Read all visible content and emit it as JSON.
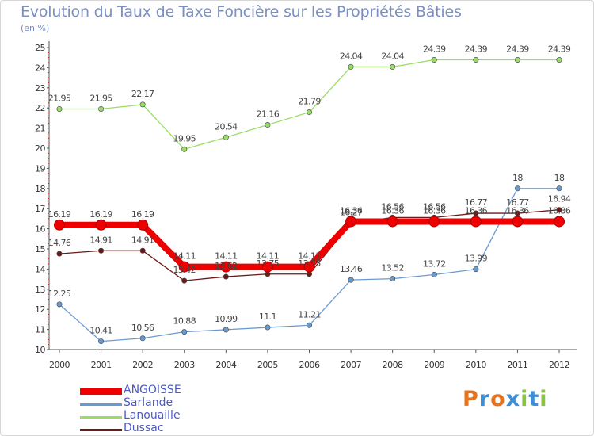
{
  "header": {
    "title": "Evolution du Taux de Taxe Foncière sur les Propriétés Bâties",
    "unit": "(en %)"
  },
  "logo": {
    "letters": [
      "P",
      "r",
      "o",
      "x",
      "i",
      "t",
      "i"
    ],
    "colors": [
      "#e8731f",
      "#3d8fd6",
      "#e8731f",
      "#3d8fd6",
      "#8ac43f",
      "#3d8fd6",
      "#8ac43f"
    ]
  },
  "chart_data": {
    "type": "line",
    "title": "Evolution du Taux de Taxe Foncière sur les Propriétés Bâties",
    "ylabel": "(en %)",
    "xlabel": "",
    "x": [
      "2000",
      "2001",
      "2002",
      "2003",
      "2004",
      "2005",
      "2006",
      "2007",
      "2008",
      "2009",
      "2010",
      "2011",
      "2012"
    ],
    "ylim": [
      10,
      25
    ],
    "yticks": [
      "10",
      "11",
      "12",
      "13",
      "14",
      "15",
      "16",
      "17",
      "18",
      "19",
      "20",
      "21",
      "22",
      "23",
      "24",
      "25"
    ],
    "grid": false,
    "legend_position": "bottom-left",
    "series": [
      {
        "name": "ANGOISSE",
        "color": "#ee0000",
        "values": [
          16.19,
          16.19,
          16.19,
          14.11,
          14.11,
          14.11,
          14.11,
          16.36,
          16.36,
          16.36,
          16.36,
          16.36,
          16.36
        ],
        "labels": [
          "16.19",
          "16.19",
          "16.19",
          "14.11",
          "14.11",
          "14.11",
          "14.11",
          "16.36",
          "16.36",
          "16.36",
          "16.36",
          "16.36",
          "16.36"
        ]
      },
      {
        "name": "Sarlande",
        "color": "#6a9bd0",
        "values": [
          12.25,
          10.41,
          10.56,
          10.88,
          10.99,
          11.1,
          11.21,
          13.46,
          13.52,
          13.72,
          13.99,
          18,
          18
        ],
        "labels": [
          "12.25",
          "10.41",
          "10.56",
          "10.88",
          "10.99",
          "11.1",
          "11.21",
          "13.46",
          "13.52",
          "13.72",
          "13.99",
          "18",
          "18"
        ]
      },
      {
        "name": "Lanouaille",
        "color": "#99dd66",
        "values": [
          21.95,
          21.95,
          22.17,
          19.95,
          20.54,
          21.16,
          21.79,
          24.04,
          24.04,
          24.39,
          24.39,
          24.39,
          24.39
        ],
        "labels": [
          "21.95",
          "21.95",
          "22.17",
          "19.95",
          "20.54",
          "21.16",
          "21.79",
          "24.04",
          "24.04",
          "24.39",
          "24.39",
          "24.39",
          "24.39"
        ]
      },
      {
        "name": "Dussac",
        "color": "#6b1a1a",
        "values": [
          14.76,
          14.91,
          14.91,
          13.42,
          13.62,
          13.75,
          13.75,
          16.27,
          16.56,
          16.56,
          16.77,
          16.77,
          16.94
        ],
        "labels": [
          "14.76",
          "14.91",
          "14.91",
          "13.42",
          "13.62",
          "13.75",
          "13.75",
          "16.27",
          "16.56",
          "16.56",
          "16.77",
          "16.77",
          "16.94"
        ]
      }
    ]
  }
}
